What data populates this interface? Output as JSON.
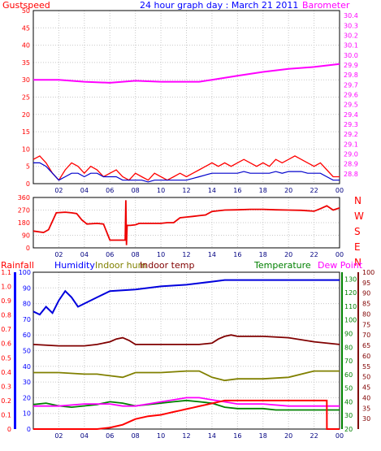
{
  "header": {
    "left_label": "Gustspeed",
    "title": "24 hour graph day : March 21 2011",
    "right_label": "Barometer"
  },
  "wind_compass": [
    "N",
    "W",
    "S",
    "E",
    "N"
  ],
  "bottom_header": {
    "rainfall": "Rainfall",
    "humidity": "Humidity",
    "indoor_hum": "Indoor hum",
    "indoor_temp": "Indoor temp",
    "temperature": "Temperature",
    "dew_point": "Dew Point"
  },
  "colors": {
    "gust": "#ff0000",
    "wind": "#0000cc",
    "barometer": "#ff00ff",
    "direction": "#ee0000",
    "rainfall": "#ff0000",
    "humidity": "#0000dd",
    "indoor_hum": "#808000",
    "indoor_temp": "#800000",
    "temperature": "#008000",
    "dew_point": "#ff00ff",
    "frame": "#000000",
    "grid": "#c8c8c8"
  },
  "chart_data": [
    {
      "type": "line",
      "name": "wind-and-pressure",
      "x_ticks": [
        "02",
        "04",
        "06",
        "08",
        "10",
        "12",
        "14",
        "16",
        "18",
        "20",
        "22",
        "00"
      ],
      "xlim": [
        0,
        24
      ],
      "y_left": {
        "label": "Gustspeed",
        "ticks": [
          0,
          5,
          10,
          15,
          20,
          25,
          30,
          35,
          40,
          45,
          50
        ],
        "ylim": [
          0,
          50
        ]
      },
      "y_right": {
        "label": "Barometer",
        "ticks": [
          28.8,
          28.9,
          29,
          29.1,
          29.2,
          29.3,
          29.4,
          29.5,
          29.6,
          29.7,
          29.8,
          29.9,
          30,
          30.1,
          30.2,
          30.3,
          30.4
        ],
        "ylim": [
          28.7,
          30.45
        ]
      },
      "series": [
        {
          "name": "Gustspeed",
          "axis": "left",
          "x": [
            0,
            0.5,
            1,
            1.5,
            2,
            2.5,
            3,
            3.5,
            4,
            4.5,
            5,
            5.5,
            6,
            6.5,
            7,
            7.5,
            8,
            8.5,
            9,
            9.5,
            10,
            10.5,
            11,
            11.5,
            12,
            12.5,
            13,
            13.5,
            14,
            14.5,
            15,
            15.5,
            16,
            16.5,
            17,
            17.5,
            18,
            18.5,
            19,
            19.5,
            20,
            20.5,
            21,
            21.5,
            22,
            22.5,
            23,
            23.5,
            24
          ],
          "values": [
            7,
            8,
            6,
            3,
            1,
            4,
            6,
            5,
            3,
            5,
            4,
            2,
            3,
            4,
            2,
            1,
            3,
            2,
            1,
            3,
            2,
            1,
            2,
            3,
            2,
            3,
            4,
            5,
            6,
            5,
            6,
            5,
            6,
            7,
            6,
            5,
            6,
            5,
            7,
            6,
            7,
            8,
            7,
            6,
            5,
            6,
            4,
            2,
            2
          ]
        },
        {
          "name": "Windspeed",
          "axis": "left",
          "x": [
            0,
            0.5,
            1,
            1.5,
            2,
            2.5,
            3,
            3.5,
            4,
            4.5,
            5,
            5.5,
            6,
            6.5,
            7,
            7.5,
            8,
            8.5,
            9,
            9.5,
            10,
            10.5,
            11,
            11.5,
            12,
            12.5,
            13,
            13.5,
            14,
            14.5,
            15,
            15.5,
            16,
            16.5,
            17,
            17.5,
            18,
            18.5,
            19,
            19.5,
            20,
            20.5,
            21,
            21.5,
            22,
            22.5,
            23,
            23.5,
            24
          ],
          "values": [
            6,
            6,
            5,
            3,
            1,
            2,
            3,
            3,
            2,
            3,
            3,
            2,
            2,
            2,
            1,
            1,
            1,
            1,
            0.5,
            1,
            1,
            1,
            1,
            1,
            1,
            1.5,
            2,
            2.5,
            3,
            3,
            3,
            3,
            3,
            3.5,
            3,
            3,
            3,
            3,
            3.5,
            3,
            3.5,
            3.5,
            3.5,
            3,
            3,
            3,
            2,
            1,
            1
          ]
        },
        {
          "name": "Barometer",
          "axis": "right",
          "x": [
            0,
            2,
            4,
            6,
            8,
            10,
            12,
            13,
            14,
            16,
            18,
            20,
            22,
            24
          ],
          "values": [
            29.75,
            29.75,
            29.73,
            29.72,
            29.74,
            29.73,
            29.73,
            29.73,
            29.75,
            29.79,
            29.83,
            29.86,
            29.88,
            29.91
          ]
        }
      ]
    },
    {
      "type": "line",
      "name": "wind-direction",
      "x_ticks": [
        "02",
        "04",
        "06",
        "08",
        "10",
        "12",
        "14",
        "16",
        "18",
        "20",
        "22",
        "00"
      ],
      "xlim": [
        0,
        24
      ],
      "y": {
        "ticks": [
          0,
          90,
          180,
          270,
          360
        ],
        "ylim": [
          0,
          360
        ]
      },
      "series": [
        {
          "name": "Wind direction",
          "x": [
            0,
            0.8,
            1.2,
            1.8,
            2.5,
            3,
            3.4,
            3.8,
            4.2,
            5,
            5.5,
            6,
            6.5,
            7,
            7.2,
            7.25,
            7.3,
            7.35,
            7.6,
            8,
            8.3,
            9,
            10,
            10.5,
            11,
            11.5,
            12,
            12.5,
            13,
            13.5,
            14,
            15,
            16,
            17,
            18,
            19,
            20,
            21,
            22,
            22.5,
            23,
            23.5,
            24
          ],
          "values": [
            120,
            110,
            130,
            250,
            255,
            250,
            245,
            200,
            170,
            175,
            170,
            55,
            55,
            55,
            55,
            340,
            20,
            160,
            160,
            165,
            175,
            175,
            175,
            180,
            180,
            215,
            220,
            225,
            230,
            235,
            260,
            270,
            272,
            275,
            275,
            272,
            270,
            268,
            262,
            280,
            300,
            270,
            285
          ]
        }
      ]
    },
    {
      "type": "line",
      "name": "humidity-rain-temperature",
      "x_ticks": [
        "02",
        "04",
        "06",
        "08",
        "10",
        "12",
        "14",
        "16",
        "18",
        "20",
        "22",
        "00"
      ],
      "xlim": [
        0,
        24
      ],
      "y_rainfall": {
        "label": "Rainfall",
        "ticks": [
          0,
          0.1,
          0.2,
          0.3,
          0.4,
          0.5,
          0.6,
          0.7,
          0.8,
          0.9,
          1,
          1.1
        ],
        "ylim": [
          0,
          1.1
        ]
      },
      "y_humidity": {
        "label": "Humidity",
        "ticks": [
          0,
          10,
          20,
          30,
          40,
          50,
          60,
          70,
          80,
          90,
          100
        ],
        "ylim": [
          0,
          100
        ]
      },
      "y_temperature": {
        "label": "Temperature",
        "ticks": [
          20,
          30,
          40,
          50,
          60,
          70,
          80,
          90,
          100,
          110,
          120,
          130
        ],
        "ylim": [
          20,
          135
        ]
      },
      "y_dewpoint": {
        "label": "Dew Point",
        "ticks": [
          30,
          35,
          40,
          45,
          50,
          55,
          60,
          65,
          70,
          75,
          80,
          85,
          90,
          95,
          100
        ],
        "ylim": [
          25,
          100
        ]
      },
      "series": [
        {
          "name": "Humidity",
          "axis": "humidity",
          "x": [
            0,
            0.5,
            1,
            1.5,
            2,
            2.5,
            3,
            3.5,
            4,
            5,
            6,
            8,
            10,
            12,
            13,
            14,
            15,
            16,
            18,
            20,
            22,
            24
          ],
          "values": [
            75,
            73,
            78,
            74,
            82,
            88,
            84,
            78,
            80,
            84,
            88,
            89,
            91,
            92,
            93,
            94,
            95,
            95,
            95,
            95,
            95,
            95
          ]
        },
        {
          "name": "Indoor hum",
          "axis": "humidity",
          "x": [
            0,
            2,
            4,
            5,
            6,
            7,
            8,
            10,
            12,
            13,
            14,
            15,
            16,
            18,
            20,
            22,
            24
          ],
          "values": [
            36,
            36,
            35,
            35,
            34,
            33,
            36,
            36,
            37,
            37,
            33,
            31,
            32,
            32,
            33,
            37,
            37
          ]
        },
        {
          "name": "Indoor temp",
          "axis": "temperature",
          "x": [
            0,
            2,
            4,
            5,
            6,
            6.5,
            7,
            7.5,
            8,
            10,
            12,
            13,
            14,
            14.5,
            15,
            15.5,
            16,
            18,
            20,
            22,
            24
          ],
          "values": [
            82,
            81,
            81,
            82,
            84,
            86,
            87,
            85,
            82,
            82,
            82,
            82,
            83,
            86,
            88,
            89,
            88,
            88,
            87,
            84,
            82
          ]
        },
        {
          "name": "Temperature",
          "axis": "temperature",
          "x": [
            0,
            1,
            2,
            3,
            4,
            5,
            6,
            7,
            8,
            9,
            10,
            11,
            12,
            13,
            14,
            15,
            16,
            17,
            18,
            19,
            20,
            21,
            22,
            23,
            24
          ],
          "values": [
            38,
            39,
            37,
            36,
            37,
            38,
            40,
            39,
            37,
            38,
            39,
            40,
            41,
            40,
            39,
            36,
            35,
            35,
            35,
            34,
            34,
            34,
            34,
            34,
            34
          ]
        },
        {
          "name": "Dew Point",
          "axis": "dewpoint",
          "x": [
            0,
            2,
            4,
            6,
            7,
            8,
            9,
            10,
            11,
            12,
            13,
            14,
            15,
            16,
            18,
            20,
            22,
            24
          ],
          "values": [
            36,
            36,
            37,
            37,
            36,
            36,
            37,
            38,
            39,
            40,
            40,
            39,
            38,
            37,
            37,
            36,
            36,
            36
          ]
        },
        {
          "name": "Rainfall",
          "axis": "rainfall",
          "x": [
            0,
            3,
            5,
            5.5,
            6,
            6.5,
            7,
            7.5,
            8,
            9,
            10,
            10.5,
            11,
            11.5,
            12,
            12.5,
            13,
            13.5,
            14,
            14.5,
            15,
            16,
            18,
            20,
            22,
            23,
            23.01,
            24
          ],
          "values": [
            0,
            0,
            0,
            0.005,
            0.01,
            0.02,
            0.03,
            0.05,
            0.07,
            0.09,
            0.1,
            0.11,
            0.12,
            0.13,
            0.14,
            0.15,
            0.16,
            0.17,
            0.18,
            0.19,
            0.2,
            0.2,
            0.2,
            0.2,
            0.2,
            0.2,
            0,
            0
          ]
        }
      ]
    }
  ]
}
